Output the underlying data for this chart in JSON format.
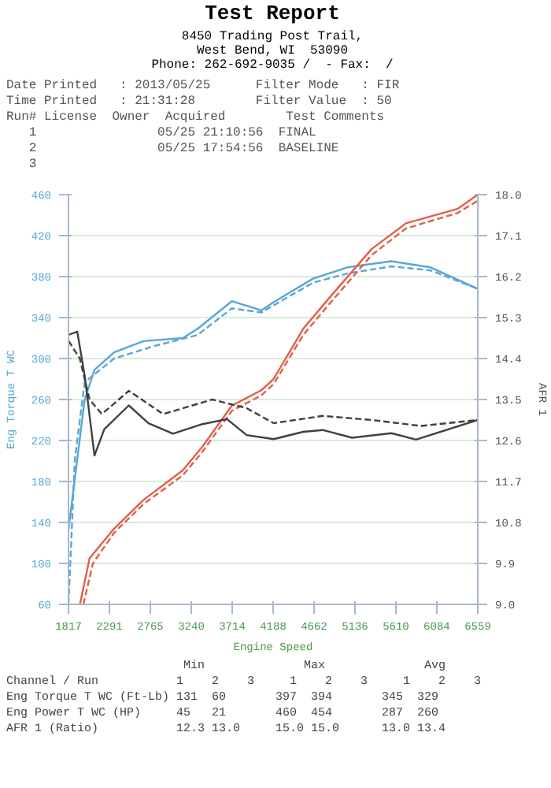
{
  "chart_data": {
    "type": "line",
    "title": "Test Report",
    "subtitle": "8450 Trading Post Trail,\nWest Bend, WI  53090\nPhone: 262-692-9035 /  - Fax:  /",
    "xlabel": "Engine Speed",
    "ylabel": "Eng Torque T WC",
    "y2label": "AFR 1",
    "annotations": [
      "Date Printed   : 2013/05/25      Filter Mode   : FIR",
      "Time Printed   : 21:31:28        Filter Value  : 50",
      "Run# License  Owner  Acquired        Test Comments",
      "   1                05/25 21:10:56  FINAL",
      "   2                05/25 17:54:56  BASELINE",
      "   3",
      "                         Min              Max              Avg",
      "Channel / Run           1    2    3     1    2    3     1    2    3",
      "Eng Torque T WC (Ft-Lb) 131  60       397  394       345  329",
      "Eng Power T WC (HP)     45   21       460  454       287  260",
      "AFR 1 (Ratio)           12.3 13.0     15.0 15.0      13.0 13.4"
    ],
    "xlim": [
      1817,
      6559
    ],
    "xticks": [
      1817,
      2291,
      2765,
      3240,
      3714,
      4188,
      4662,
      5136,
      5610,
      6084,
      6559
    ],
    "ylim": [
      60,
      460
    ],
    "yticks": [
      60,
      100,
      140,
      180,
      220,
      260,
      300,
      340,
      380,
      420,
      460
    ],
    "y2lim": [
      9,
      18
    ],
    "y2ticks": [
      {
        "value": 9,
        "label": "9.0"
      },
      9.9,
      10.8,
      11.7,
      12.6,
      13.5,
      14.4,
      15.3,
      16.2,
      17.1,
      {
        "value": 18,
        "label": "18.0"
      }
    ],
    "grid": "y",
    "marker": "none",
    "series": [
      {
        "color": "#5aa6d6",
        "line_style": "solid",
        "x": [
          1817,
          2005,
          2118,
          2346,
          2687,
          3142,
          3312,
          3710,
          4051,
          4193,
          4649,
          5046,
          5558,
          6013,
          6559
        ],
        "values": [
          133,
          260,
          289,
          306,
          317,
          320,
          329,
          356,
          347,
          355,
          378,
          389,
          395,
          389,
          368
        ]
      },
      {
        "color": "#5aa6d6",
        "line_style": "dashed",
        "x": [
          1817,
          1891,
          2005,
          2346,
          2801,
          3312,
          3710,
          4051,
          4649,
          5046,
          5558,
          6013,
          6559
        ],
        "values": [
          60,
          202,
          277,
          300,
          312,
          323,
          349,
          345,
          374,
          383,
          390,
          386,
          368
        ]
      },
      {
        "color": "#e0604a",
        "line_style": "solid",
        "x": [
          1950,
          2061,
          2346,
          2687,
          3142,
          3369,
          3710,
          4051,
          4193,
          4536,
          4877,
          5330,
          5726,
          6322,
          6559
        ],
        "values": [
          60,
          105,
          134,
          162,
          191,
          214,
          254,
          269,
          280,
          329,
          363,
          407,
          432,
          446,
          460
        ]
      },
      {
        "color": "#e0604a",
        "line_style": "dashed",
        "x": [
          1990,
          2100,
          2346,
          2687,
          3142,
          3369,
          3710,
          4051,
          4193,
          4536,
          4877,
          5330,
          5726,
          6322,
          6559
        ],
        "values": [
          60,
          100,
          130,
          158,
          186,
          209,
          249,
          264,
          275,
          323,
          357,
          401,
          427,
          442,
          454
        ]
      },
      {
        "color": "#404040",
        "line_style": "solid",
        "axis": "y2",
        "x": [
          1817,
          1919,
          2005,
          2118,
          2232,
          2516,
          2744,
          3028,
          3369,
          3653,
          3881,
          4194,
          4536,
          4761,
          5102,
          5558,
          5843,
          6559
        ],
        "values": [
          14.92,
          14.99,
          14.02,
          12.27,
          12.85,
          13.37,
          12.98,
          12.75,
          12.96,
          13.07,
          12.72,
          12.63,
          12.79,
          12.83,
          12.66,
          12.76,
          12.62,
          13.05
        ]
      },
      {
        "color": "#404040",
        "line_style": "dashed",
        "axis": "y2",
        "x": [
          1817,
          1948,
          2061,
          2204,
          2516,
          2914,
          3483,
          3881,
          4194,
          4761,
          5330,
          5900,
          6559
        ],
        "values": [
          14.79,
          14.4,
          13.5,
          13.18,
          13.69,
          13.18,
          13.5,
          13.31,
          12.98,
          13.14,
          13.05,
          12.92,
          13.05
        ]
      }
    ]
  }
}
